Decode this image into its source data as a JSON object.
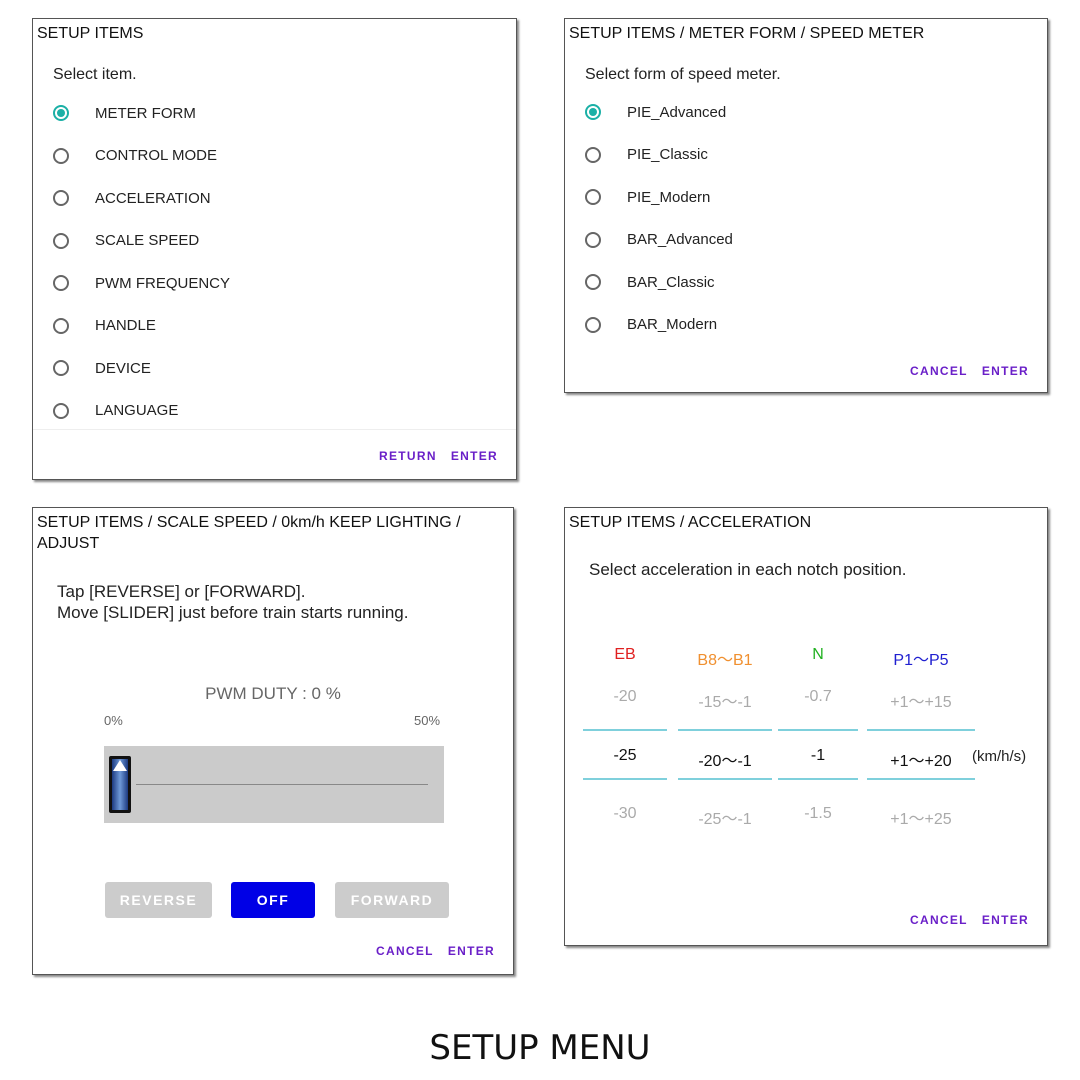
{
  "panel1": {
    "title": "SETUP ITEMS",
    "prompt": "Select item.",
    "items": [
      "METER FORM",
      "CONTROL MODE",
      "ACCELERATION",
      "SCALE SPEED",
      "PWM FREQUENCY",
      "HANDLE",
      "DEVICE",
      "LANGUAGE"
    ],
    "selected": 0,
    "return": "RETURN",
    "enter": "ENTER"
  },
  "panel2": {
    "title": "SETUP ITEMS / METER FORM / SPEED METER",
    "prompt": "Select form of speed meter.",
    "items": [
      "PIE_Advanced",
      "PIE_Classic",
      "PIE_Modern",
      "BAR_Advanced",
      "BAR_Classic",
      "BAR_Modern"
    ],
    "selected": 0,
    "cancel": "CANCEL",
    "enter": "ENTER"
  },
  "panel3": {
    "title": "SETUP ITEMS / SCALE SPEED / 0km/h KEEP LIGHTING / ADJUST",
    "line1": "Tap [REVERSE] or [FORWARD].",
    "line2": "Move [SLIDER] just before train starts running.",
    "duty": "PWM DUTY : 0 %",
    "min": "0%",
    "max": "50%",
    "slider_value_percent": 0,
    "reverse": "REVERSE",
    "off": "OFF",
    "forward": "FORWARD",
    "cancel": "CANCEL",
    "enter": "ENTER"
  },
  "panel4": {
    "title": "SETUP ITEMS / ACCELERATION",
    "prompt": "Select acceleration in each notch position.",
    "columns": [
      {
        "header": "EB",
        "color": "#e02020",
        "above": "-20",
        "value": "-25",
        "below": "-30"
      },
      {
        "header": "B8〜B1",
        "color": "#f09030",
        "above": "-15〜-1",
        "value": "-20〜-1",
        "below": "-25〜-1"
      },
      {
        "header": "N",
        "color": "#20b020",
        "above": "-0.7",
        "value": "-1",
        "below": "-1.5"
      },
      {
        "header": "P1〜P5",
        "color": "#2020d0",
        "above": "+1〜+15",
        "value": "+1〜+20",
        "below": "+1〜+25"
      }
    ],
    "unit": "(km/h/s)",
    "cancel": "CANCEL",
    "enter": "ENTER"
  },
  "caption": "SETUP MENU",
  "colors": {
    "accent": "#6a1fc8",
    "radio": "#1bb0a6",
    "off_button": "#0000e6",
    "disabled_button": "#cccccc"
  }
}
